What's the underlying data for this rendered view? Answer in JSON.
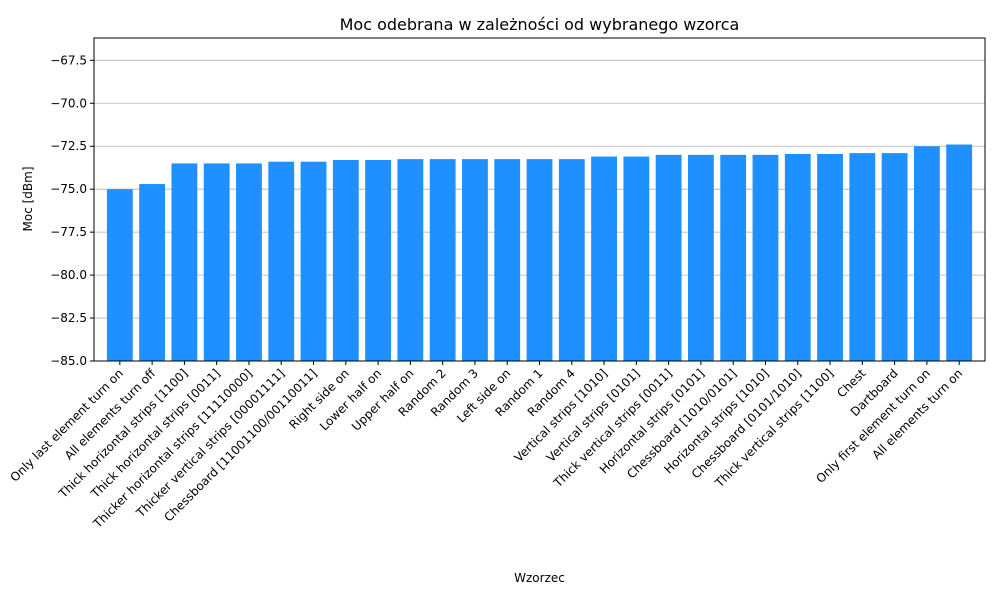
{
  "chart_data": {
    "type": "bar",
    "title": "Moc odebrana w zależności od wybranego wzorca",
    "xlabel": "Wzorzec",
    "ylabel": "Moc [dBm]",
    "ylim": [
      -85,
      -66.2
    ],
    "yticks": [
      -85.0,
      -82.5,
      -80.0,
      -77.5,
      -75.0,
      -72.5,
      -70.0,
      -67.5
    ],
    "ytick_labels": [
      "−85.0",
      "−82.5",
      "−80.0",
      "−77.5",
      "−75.0",
      "−72.5",
      "−70.0",
      "−67.5"
    ],
    "grid": "y",
    "bar_color": "#1e90ff",
    "categories": [
      "Only last element turn on",
      "All elements turn off",
      "Thick horizontal strips [1100]",
      "Thick horizontal strips [0011]",
      "Thicker horizontal strips [11110000]",
      "Thicker vertical strips [00001111]",
      "Chessboard [11001100/00110011]",
      "Right side on",
      "Lower half on",
      "Upper half on",
      "Random 2",
      "Random 3",
      "Left side on",
      "Random 1",
      "Random 4",
      "Vertical strips [1010]",
      "Vertical strips [0101]",
      "Thick vertical strips [0011]",
      "Horizontal strips [0101]",
      "Chessboard [1010/0101]",
      "Horizontal strips [1010]",
      "Chessboard [0101/1010]",
      "Thick vertical strips [1100]",
      "Chest",
      "Dartboard",
      "Only first element turn on",
      "All elements turn on"
    ],
    "values": [
      -75.0,
      -74.7,
      -73.5,
      -73.5,
      -73.5,
      -73.4,
      -73.4,
      -73.3,
      -73.3,
      -73.25,
      -73.25,
      -73.25,
      -73.25,
      -73.25,
      -73.25,
      -73.1,
      -73.1,
      -73.0,
      -73.0,
      -73.0,
      -73.0,
      -72.95,
      -72.95,
      -72.9,
      -72.9,
      -72.5,
      -72.4
    ]
  }
}
